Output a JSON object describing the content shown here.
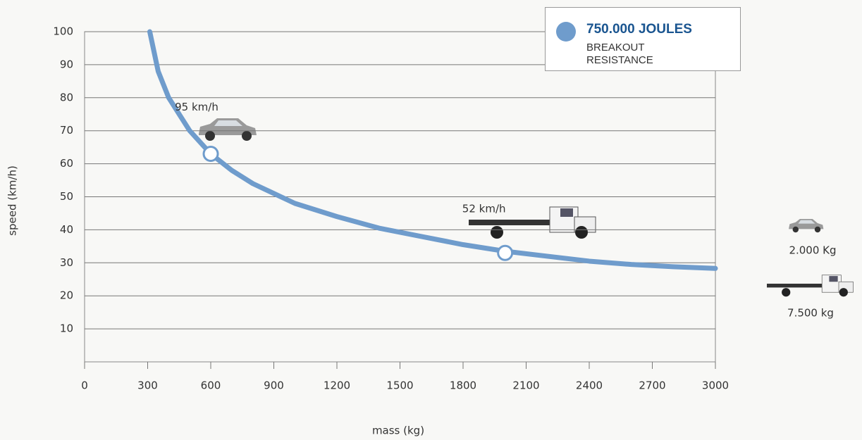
{
  "chart_data": {
    "type": "line",
    "x_label": "mass (kg)",
    "y_label": "speed (km/h)",
    "x": [
      310,
      350,
      400,
      500,
      600,
      700,
      800,
      900,
      1000,
      1200,
      1400,
      1600,
      1800,
      2000,
      2200,
      2400,
      2600,
      2800,
      3000
    ],
    "series": [
      {
        "name": "750.000 JOULES",
        "color": "#6f9ccc",
        "values": [
          100,
          88,
          80,
          70,
          63,
          58,
          54,
          51,
          48,
          44,
          40.5,
          38,
          35.5,
          33.5,
          32,
          30.5,
          29.5,
          28.8,
          28.3
        ]
      }
    ],
    "legend_note": "BREAKOUT RESISTANCE",
    "markers": {
      "x": [
        600,
        2000
      ],
      "values": [
        63,
        33
      ]
    },
    "annotations": [
      "95 km/h",
      "52 km/h"
    ],
    "side_labels": [
      "2.000 Kg",
      "7.500 kg"
    ],
    "xlim": [
      0,
      3000
    ],
    "xticks": [
      0,
      300,
      600,
      900,
      1200,
      1500,
      1800,
      2100,
      2400,
      2700,
      3000
    ],
    "ylim": [
      0,
      100
    ],
    "yticks": [
      10,
      20,
      30,
      40,
      50,
      60,
      70,
      80,
      90,
      100
    ],
    "grid": true
  }
}
